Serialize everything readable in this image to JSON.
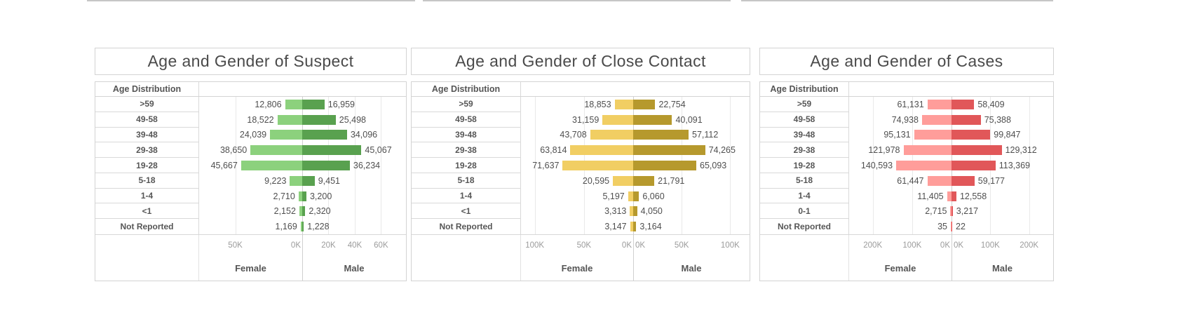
{
  "axis_unit_suffix": "K",
  "row_header": "Age Distribution",
  "xlabels": {
    "female": "Female",
    "male": "Male"
  },
  "chart_data": [
    {
      "type": "bar",
      "subtype": "population_pyramid",
      "title": "Age and Gender of Suspect",
      "row_header": "Age Distribution",
      "categories": [
        ">59",
        "49-58",
        "39-48",
        "29-38",
        "19-28",
        "5-18",
        "1-4",
        "<1",
        "Not Reported"
      ],
      "series": [
        {
          "name": "Female",
          "color": "#8CD17D",
          "values": [
            12806,
            18522,
            24039,
            38650,
            45667,
            9223,
            2710,
            2152,
            1169
          ]
        },
        {
          "name": "Male",
          "color": "#59A14F",
          "values": [
            16959,
            25498,
            34096,
            45067,
            36234,
            9451,
            3200,
            2320,
            1228
          ]
        }
      ],
      "xlabels": {
        "female": "Female",
        "male": "Male"
      },
      "axis": {
        "female_max": 77000,
        "male_max": 79000,
        "female_ticks": [
          {
            "label": "50K",
            "value": 50000
          },
          {
            "label": "0K",
            "value": 0
          }
        ],
        "male_ticks": [
          {
            "label": "20K",
            "value": 20000
          },
          {
            "label": "40K",
            "value": 40000
          },
          {
            "label": "60K",
            "value": 60000
          }
        ]
      }
    },
    {
      "type": "bar",
      "subtype": "population_pyramid",
      "title": "Age and Gender of Close Contact",
      "row_header": "Age Distribution",
      "categories": [
        ">59",
        "49-58",
        "39-48",
        "29-38",
        "19-28",
        "5-18",
        "1-4",
        "<1",
        "Not Reported"
      ],
      "series": [
        {
          "name": "Female",
          "color": "#F1CE63",
          "values": [
            18853,
            31159,
            43708,
            63814,
            71637,
            20595,
            5197,
            3313,
            3147
          ]
        },
        {
          "name": "Male",
          "color": "#B6992D",
          "values": [
            22754,
            40091,
            57112,
            74265,
            65093,
            21791,
            6060,
            4050,
            3164
          ]
        }
      ],
      "xlabels": {
        "female": "Female",
        "male": "Male"
      },
      "axis": {
        "female_max": 114000,
        "male_max": 120000,
        "female_ticks": [
          {
            "label": "100K",
            "value": 100000
          },
          {
            "label": "50K",
            "value": 50000
          },
          {
            "label": "0K",
            "value": 0
          }
        ],
        "male_ticks": [
          {
            "label": "0K",
            "value": 0
          },
          {
            "label": "50K",
            "value": 50000
          },
          {
            "label": "100K",
            "value": 100000
          }
        ]
      }
    },
    {
      "type": "bar",
      "subtype": "population_pyramid",
      "title": "Age and Gender of Cases",
      "row_header": "Age Distribution",
      "categories": [
        ">59",
        "49-58",
        "39-48",
        "29-38",
        "19-28",
        "5-18",
        "1-4",
        "0-1",
        "Not Reported"
      ],
      "series": [
        {
          "name": "Female",
          "color": "#FF9D9A",
          "values": [
            61131,
            74938,
            95131,
            121978,
            140593,
            61447,
            11405,
            2715,
            35
          ]
        },
        {
          "name": "Male",
          "color": "#E15759",
          "values": [
            58409,
            75388,
            99847,
            129312,
            113369,
            59177,
            12558,
            3217,
            22
          ]
        }
      ],
      "xlabels": {
        "female": "Female",
        "male": "Male"
      },
      "axis": {
        "female_max": 260000,
        "male_max": 262000,
        "female_ticks": [
          {
            "label": "200K",
            "value": 200000
          },
          {
            "label": "100K",
            "value": 100000
          },
          {
            "label": "0K",
            "value": 0
          }
        ],
        "male_ticks": [
          {
            "label": "0K",
            "value": 0
          },
          {
            "label": "100K",
            "value": 100000
          },
          {
            "label": "200K",
            "value": 200000
          }
        ]
      }
    }
  ]
}
